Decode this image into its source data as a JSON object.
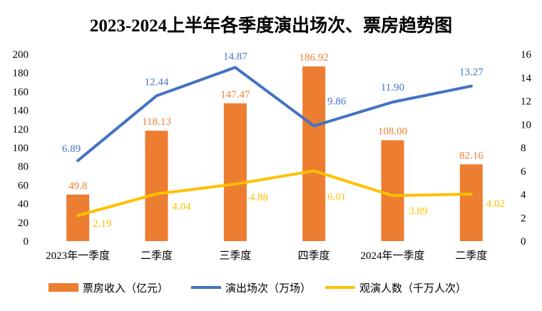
{
  "chart_data": {
    "type": "bar+line",
    "title": "2023-2024上半年各季度演出场次、票房趋势图",
    "categories": [
      "2023年一季度",
      "二季度",
      "三季度",
      "四季度",
      "2024年一季度",
      "二季度"
    ],
    "y_left": {
      "range": [
        0,
        200
      ],
      "ticks": [
        0,
        20,
        40,
        60,
        80,
        100,
        120,
        140,
        160,
        180,
        200
      ]
    },
    "y_right": {
      "range": [
        0,
        16
      ],
      "ticks": [
        0,
        2,
        4,
        6,
        8,
        10,
        12,
        14,
        16
      ]
    },
    "grid": false,
    "legend_position": "bottom",
    "series": [
      {
        "name": "票房收入（亿元）",
        "type": "bar",
        "axis": "left",
        "color": "#ED7D31",
        "values": [
          49.8,
          118.13,
          147.47,
          186.92,
          108.0,
          82.16
        ],
        "labels": [
          "49.8",
          "118.13",
          "147.47",
          "186.92",
          "108.00",
          "82.16"
        ]
      },
      {
        "name": "演出场次（万场）",
        "type": "line",
        "axis": "right",
        "color": "#4472C4",
        "values": [
          6.89,
          12.44,
          14.87,
          9.86,
          11.9,
          13.27
        ],
        "labels": [
          "6.89",
          "12.44",
          "14.87",
          "9.86",
          "11.90",
          "13.27"
        ]
      },
      {
        "name": "观演人数（千万人次）",
        "type": "line",
        "axis": "right",
        "color": "#FFC000",
        "values": [
          2.19,
          4.04,
          4.88,
          6.01,
          3.89,
          4.02
        ],
        "labels": [
          "2.19",
          "4.04",
          "4.88",
          "6.01",
          "3.89",
          "4.02"
        ]
      }
    ]
  }
}
